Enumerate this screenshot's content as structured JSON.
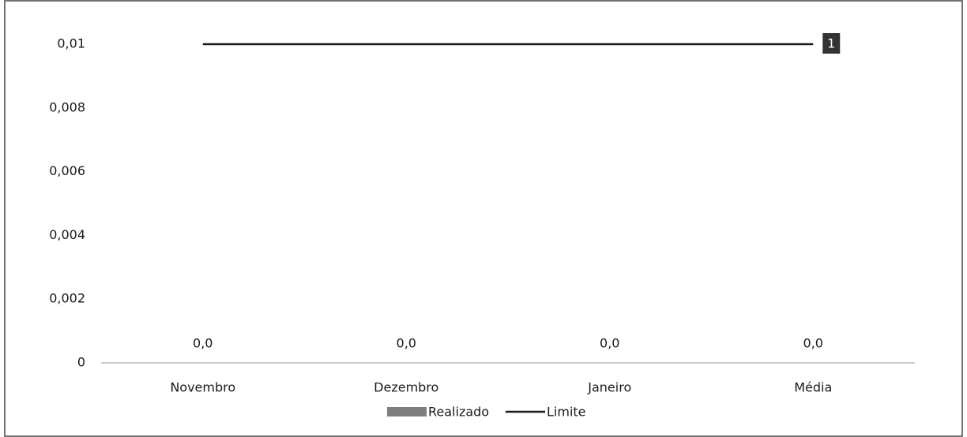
{
  "chart_data": {
    "type": "bar",
    "categories": [
      "Novembro",
      "Dezembro",
      "Janeiro",
      "Média"
    ],
    "series": [
      {
        "name": "Realizado",
        "type": "bar",
        "color": "#7f7f7f",
        "values": [
          0,
          0,
          0,
          0
        ],
        "value_labels": [
          "0,0",
          "0,0",
          "0,0",
          "0,0"
        ]
      },
      {
        "name": "Limite",
        "type": "line",
        "color": "#1a1a1a",
        "values": [
          0.01,
          0.01,
          0.01,
          0.01
        ]
      }
    ],
    "annotations": [
      "1"
    ],
    "ylim": [
      0,
      0.01
    ],
    "yticks": [
      0,
      {
        "value": 0.002,
        "label": "0,002"
      },
      {
        "value": 0.004,
        "label": "0,004"
      },
      {
        "value": 0.006,
        "label": "0,006"
      },
      {
        "value": 0.008,
        "label": "0,008"
      },
      {
        "value": 0.01,
        "label": "0,01"
      }
    ],
    "legend": "bottom"
  }
}
